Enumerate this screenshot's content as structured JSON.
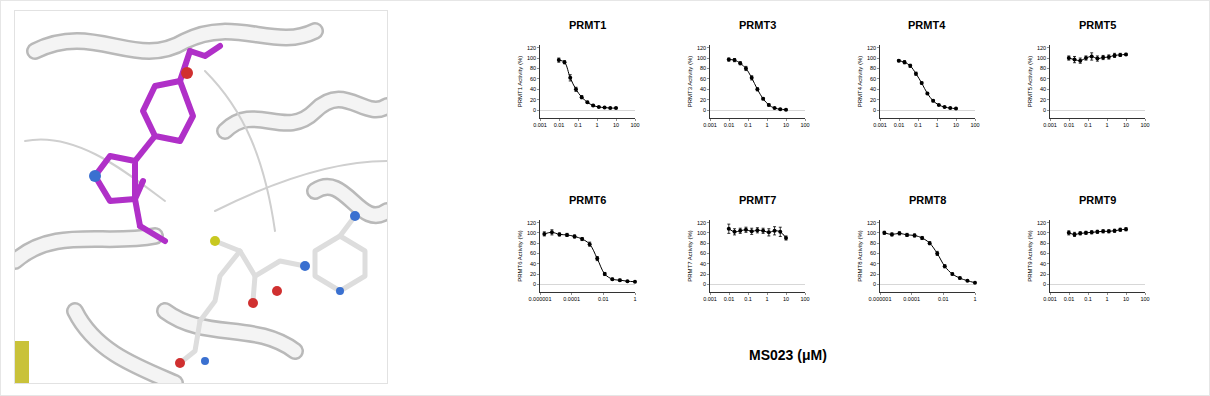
{
  "xlabel": "MS023 (μM)",
  "chart_data": [
    {
      "type": "scatter",
      "title": "PRMT1",
      "ylabel": "PRMT1 Activity (%)",
      "log": "x",
      "x": [
        0.009766,
        0.01953,
        0.03906,
        0.07813,
        0.1563,
        0.3125,
        0.625,
        1.25,
        2.5,
        5,
        10
      ],
      "values": [
        96,
        92,
        62,
        40,
        25,
        15,
        9,
        6,
        5,
        4,
        4
      ],
      "errors": [
        4,
        3,
        6,
        4,
        3,
        2,
        2,
        1,
        1,
        1,
        1
      ],
      "xlim": [
        0.001,
        100
      ],
      "xticks": [
        0.001,
        0.01,
        0.1,
        1,
        10,
        100
      ],
      "ylim": [
        -15,
        125
      ],
      "yticks": [
        0,
        20,
        40,
        60,
        80,
        100,
        120
      ],
      "color": "#000000",
      "marker": "circle",
      "line_style": "solid"
    },
    {
      "type": "scatter",
      "title": "PRMT3",
      "ylabel": "PRMT3 Activity (%)",
      "log": "x",
      "x": [
        0.009766,
        0.01953,
        0.03906,
        0.07813,
        0.1563,
        0.3125,
        0.625,
        1.25,
        2.5,
        5,
        10
      ],
      "values": [
        97,
        96,
        90,
        80,
        62,
        40,
        22,
        10,
        4,
        2,
        1
      ],
      "errors": [
        3,
        3,
        3,
        4,
        4,
        3,
        2,
        2,
        1,
        1,
        1
      ],
      "xlim": [
        0.001,
        100
      ],
      "xticks": [
        0.001,
        0.01,
        0.1,
        1,
        10,
        100
      ],
      "ylim": [
        -15,
        125
      ],
      "yticks": [
        0,
        20,
        40,
        60,
        80,
        100,
        120
      ],
      "color": "#000000",
      "marker": "circle",
      "line_style": "solid"
    },
    {
      "type": "scatter",
      "title": "PRMT4",
      "ylabel": "PRMT4 Activity (%)",
      "log": "x",
      "x": [
        0.009766,
        0.01953,
        0.03906,
        0.07813,
        0.1563,
        0.3125,
        0.625,
        1.25,
        2.5,
        5,
        10
      ],
      "values": [
        95,
        92,
        85,
        70,
        52,
        32,
        18,
        10,
        6,
        4,
        3
      ],
      "errors": [
        2,
        3,
        3,
        3,
        2,
        2,
        2,
        1,
        1,
        1,
        1
      ],
      "xlim": [
        0.001,
        100
      ],
      "xticks": [
        0.001,
        0.01,
        0.1,
        1,
        10,
        100
      ],
      "ylim": [
        -15,
        125
      ],
      "yticks": [
        0,
        20,
        40,
        60,
        80,
        100,
        120
      ],
      "color": "#000000",
      "marker": "circle",
      "line_style": "solid"
    },
    {
      "type": "scatter",
      "title": "PRMT5",
      "ylabel": "PRMT5 Activity (%)",
      "log": "x",
      "x": [
        0.009766,
        0.01953,
        0.03906,
        0.07813,
        0.1563,
        0.3125,
        0.625,
        1.25,
        2.5,
        5,
        10
      ],
      "values": [
        100,
        97,
        95,
        100,
        103,
        99,
        101,
        102,
        105,
        106,
        107
      ],
      "errors": [
        4,
        6,
        5,
        4,
        7,
        5,
        4,
        4,
        4,
        3,
        2
      ],
      "xlim": [
        0.001,
        100
      ],
      "xticks": [
        0.001,
        0.01,
        0.1,
        1,
        10,
        100
      ],
      "ylim": [
        -15,
        125
      ],
      "yticks": [
        0,
        20,
        40,
        60,
        80,
        100,
        120
      ],
      "color": "#000000",
      "marker": "circle",
      "line_style": "solid"
    },
    {
      "type": "scatter",
      "title": "PRMT6",
      "ylabel": "PRMT6 Activity (%)",
      "log": "x",
      "x": [
        1.88e-06,
        5.65e-06,
        1.69e-05,
        5.08e-05,
        0.000152,
        0.000457,
        0.00137,
        0.00412,
        0.0123,
        0.037,
        0.111,
        0.333,
        1
      ],
      "values": [
        98,
        101,
        97,
        96,
        93,
        88,
        78,
        50,
        20,
        10,
        8,
        6,
        5
      ],
      "errors": [
        4,
        5,
        3,
        3,
        3,
        3,
        4,
        4,
        3,
        2,
        2,
        1,
        1
      ],
      "xlim": [
        1e-06,
        1
      ],
      "xticks": [
        1e-06,
        0.0001,
        0.01,
        1
      ],
      "ylim": [
        -15,
        125
      ],
      "yticks": [
        0,
        20,
        40,
        60,
        80,
        100,
        120
      ],
      "color": "#000000",
      "marker": "circle",
      "line_style": "solid"
    },
    {
      "type": "scatter",
      "title": "PRMT7",
      "ylabel": "PRMT7 Activity (%)",
      "log": "x",
      "x": [
        0.009766,
        0.01953,
        0.03906,
        0.07813,
        0.1563,
        0.3125,
        0.625,
        1.25,
        2.5,
        5,
        10
      ],
      "values": [
        108,
        102,
        104,
        106,
        103,
        105,
        104,
        101,
        104,
        102,
        90
      ],
      "errors": [
        9,
        6,
        5,
        5,
        6,
        5,
        5,
        7,
        8,
        9,
        4
      ],
      "xlim": [
        0.001,
        100
      ],
      "xticks": [
        0.001,
        0.01,
        0.1,
        1,
        10,
        100
      ],
      "ylim": [
        -15,
        125
      ],
      "yticks": [
        0,
        20,
        40,
        60,
        80,
        100,
        120
      ],
      "color": "#000000",
      "marker": "circle",
      "line_style": "solid"
    },
    {
      "type": "scatter",
      "title": "PRMT8",
      "ylabel": "PRMT8 Activity (%)",
      "log": "x",
      "x": [
        1.88e-06,
        5.65e-06,
        1.69e-05,
        5.08e-05,
        0.000152,
        0.000457,
        0.00137,
        0.00412,
        0.0123,
        0.037,
        0.111,
        0.333,
        1
      ],
      "values": [
        100,
        97,
        99,
        96,
        95,
        90,
        80,
        60,
        35,
        20,
        12,
        7,
        3
      ],
      "errors": [
        3,
        3,
        3,
        3,
        3,
        3,
        3,
        4,
        3,
        2,
        2,
        1,
        1
      ],
      "xlim": [
        1e-06,
        1
      ],
      "xticks": [
        1e-06,
        0.0001,
        0.01,
        1
      ],
      "ylim": [
        -15,
        125
      ],
      "yticks": [
        0,
        20,
        40,
        60,
        80,
        100,
        120
      ],
      "color": "#000000",
      "marker": "circle",
      "line_style": "solid"
    },
    {
      "type": "scatter",
      "title": "PRMT9",
      "ylabel": "PRMT9 Activity (%)",
      "log": "x",
      "x": [
        0.009766,
        0.01953,
        0.03906,
        0.07813,
        0.1563,
        0.3125,
        0.625,
        1.25,
        2.5,
        5,
        10
      ],
      "values": [
        100,
        97,
        99,
        100,
        101,
        102,
        103,
        103,
        104,
        106,
        107
      ],
      "errors": [
        4,
        4,
        3,
        3,
        3,
        3,
        3,
        3,
        3,
        3,
        3
      ],
      "xlim": [
        0.001,
        100
      ],
      "xticks": [
        0.001,
        0.01,
        0.1,
        1,
        10,
        100
      ],
      "ylim": [
        -15,
        125
      ],
      "yticks": [
        0,
        20,
        40,
        60,
        80,
        100,
        120
      ],
      "color": "#000000",
      "marker": "circle",
      "line_style": "solid"
    }
  ]
}
